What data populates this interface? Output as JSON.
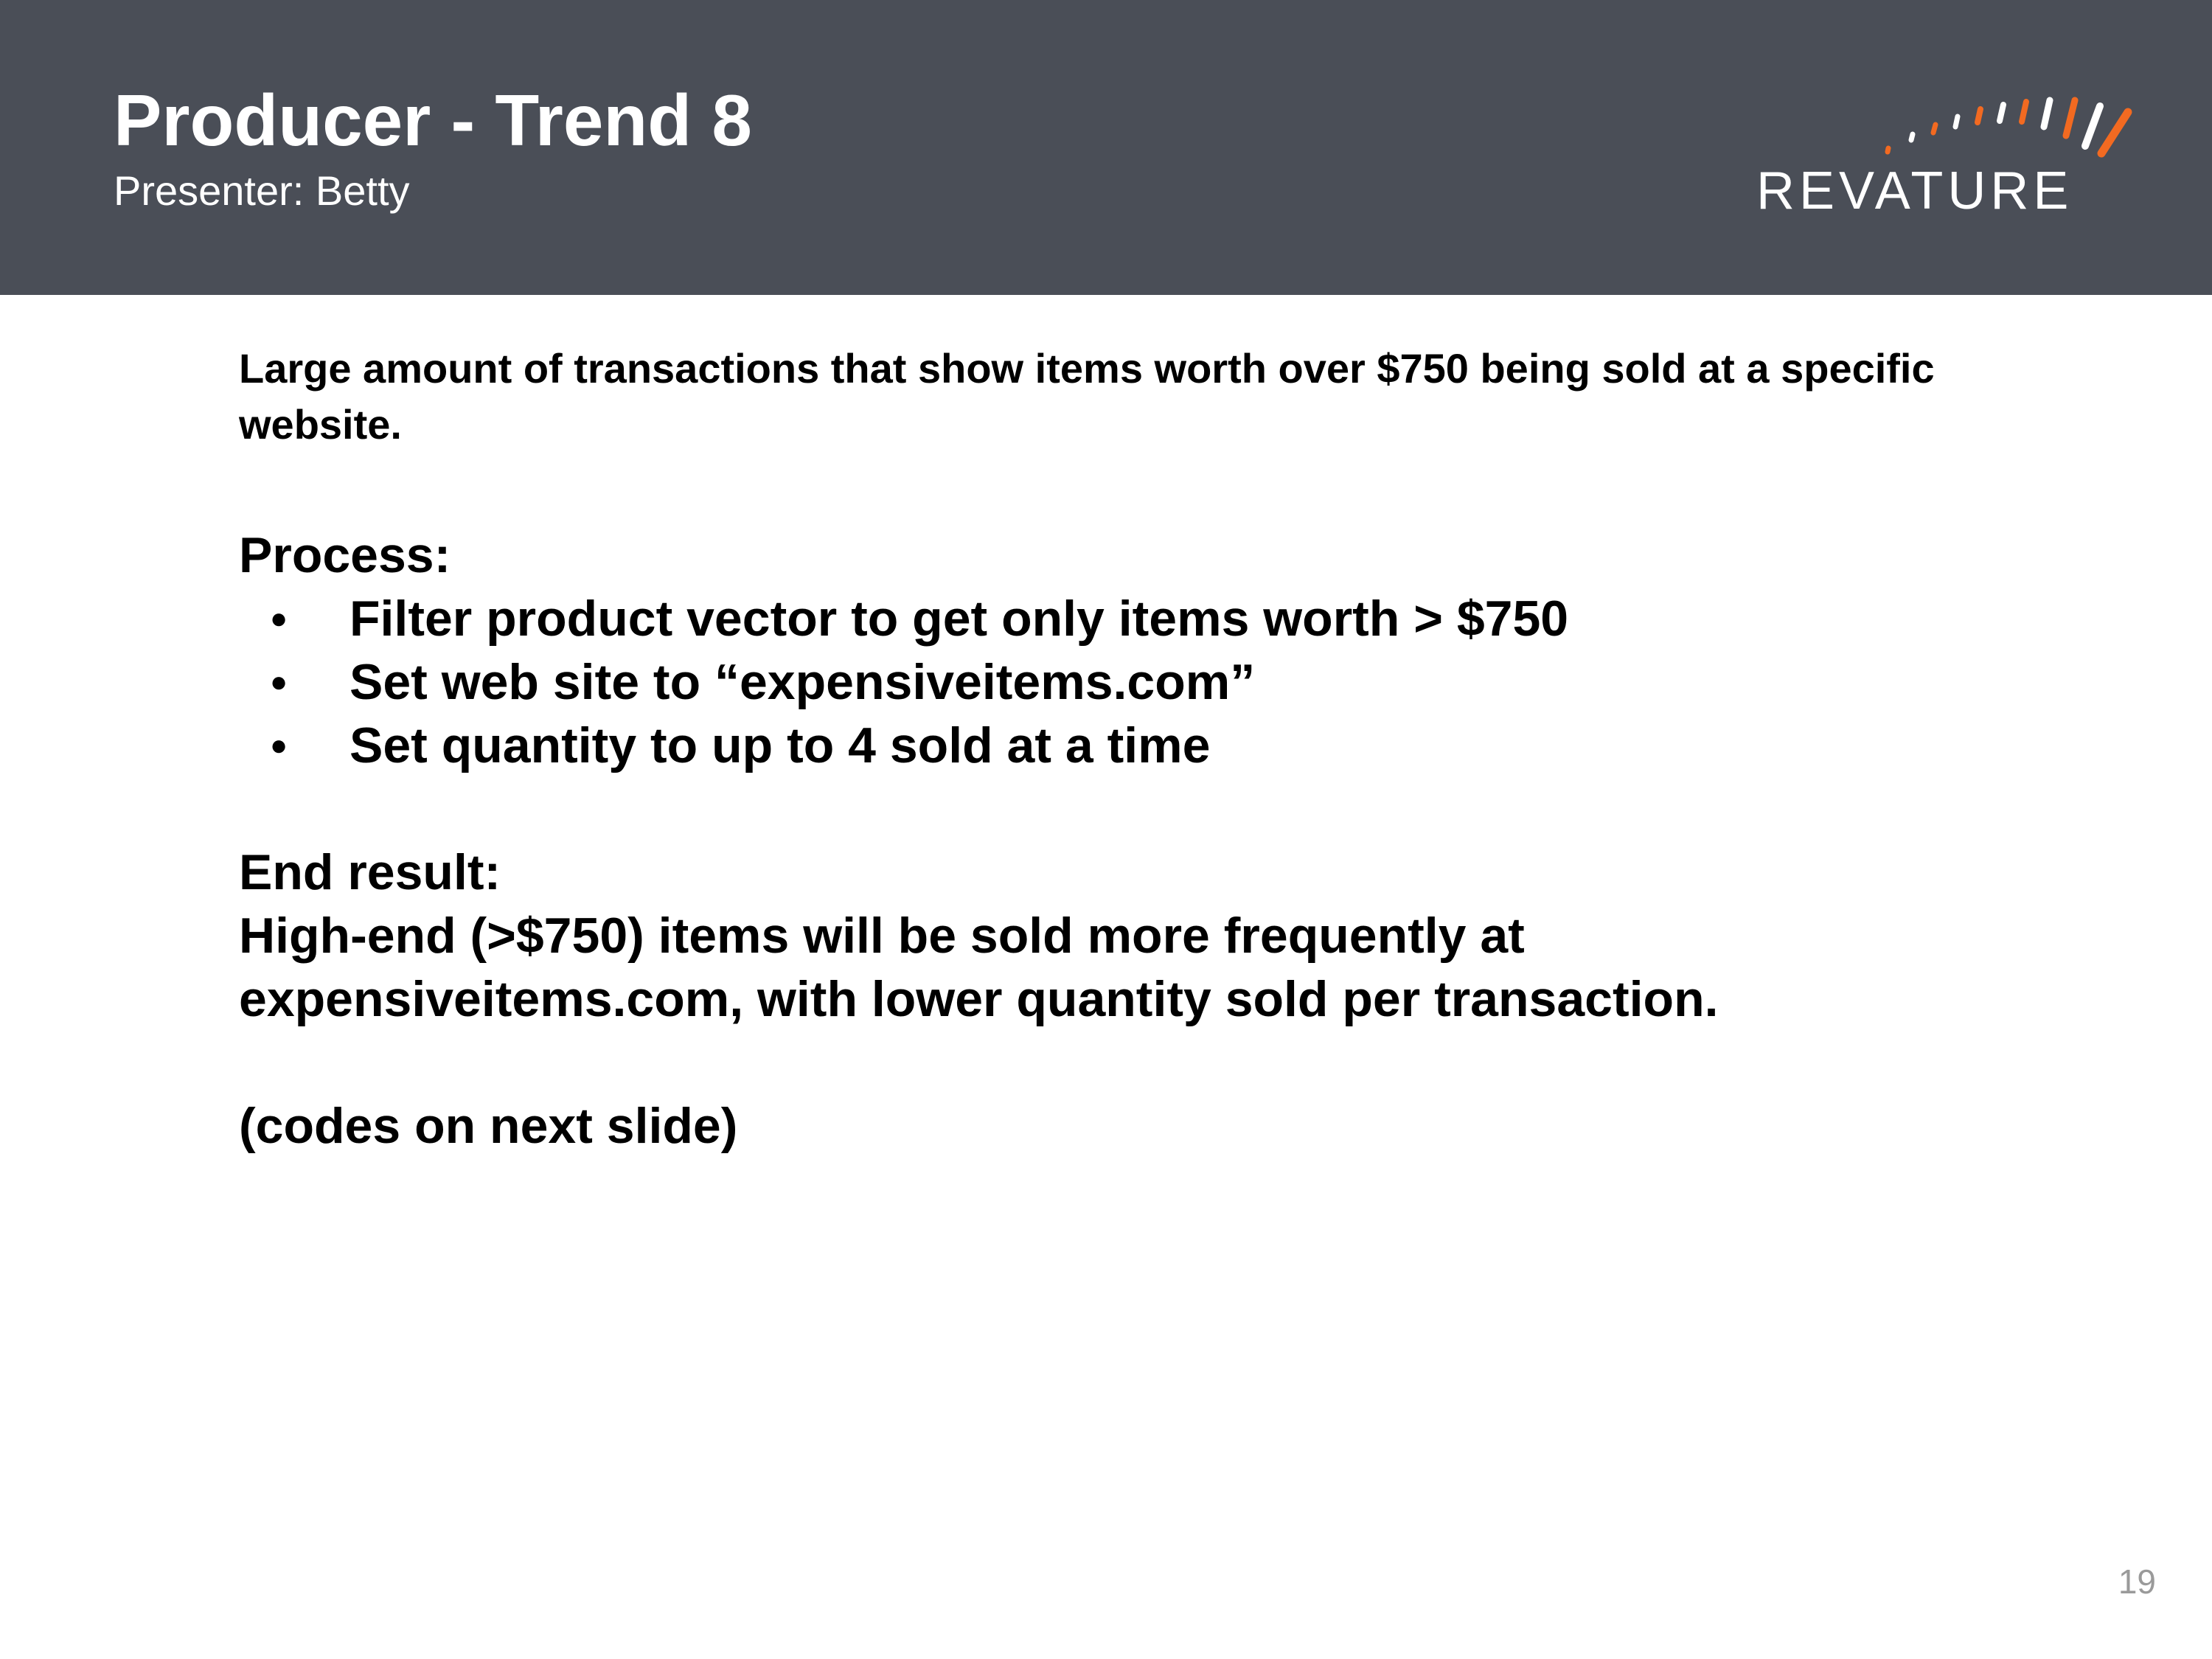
{
  "header": {
    "title": "Producer - Trend 8",
    "presenter": "Presenter: Betty",
    "logo_text": "REVATURE",
    "background_color": "#4a4e57",
    "logo_accent_color": "#f26a21"
  },
  "content": {
    "intro": "Large amount of transactions that show items worth over $750 being sold at a specific website.",
    "process_heading": "Process:",
    "process_steps": [
      "Filter product vector to get only items worth > $750",
      "Set web site to “expensiveitems.com”",
      "Set quantity to up to 4 sold at a time"
    ],
    "end_heading": "End result:",
    "end_result": "High-end (>$750) items will be sold more frequently at expensiveitems.com, with lower quantity sold per transaction.",
    "note": "(codes on next slide)"
  },
  "footer": {
    "page_number": "19"
  }
}
